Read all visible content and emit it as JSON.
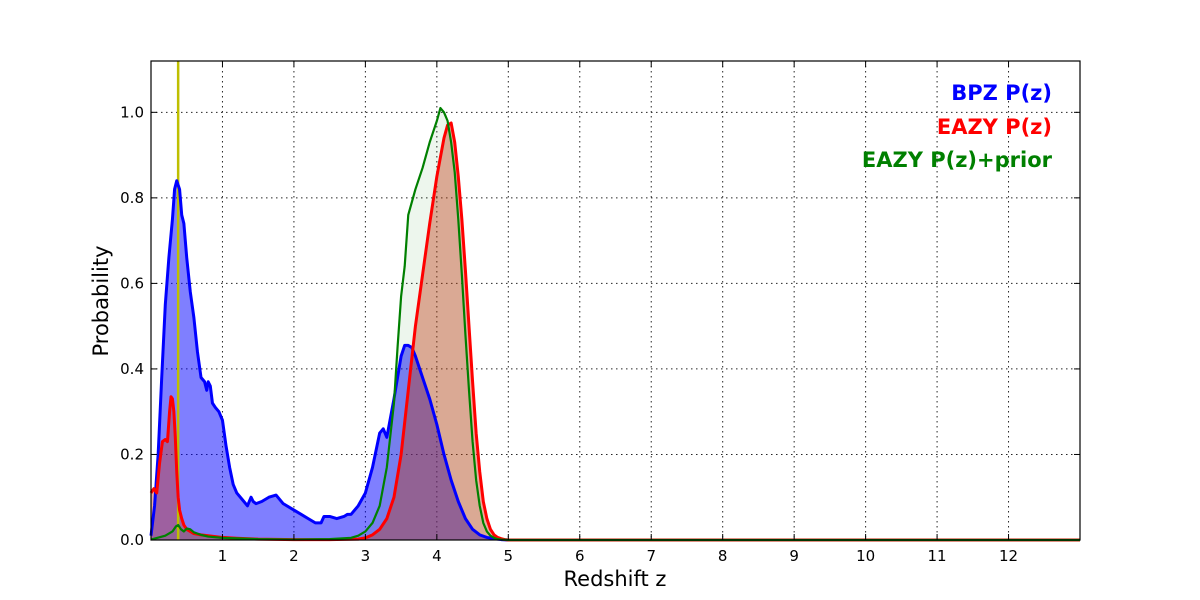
{
  "chart_data": {
    "type": "area",
    "title": "",
    "xlabel": "Redshift z",
    "ylabel": "Probability",
    "xlim": [
      0,
      13
    ],
    "ylim": [
      0,
      1.12
    ],
    "x_ticks": [
      1,
      2,
      3,
      4,
      5,
      6,
      7,
      8,
      9,
      10,
      11,
      12
    ],
    "y_ticks": [
      "0.0",
      "0.2",
      "0.4",
      "0.6",
      "0.8",
      "1.0"
    ],
    "grid": true,
    "legend_position": "top-right",
    "vline": {
      "x": 0.38,
      "color": "#bfbf00"
    },
    "series": [
      {
        "name": "BPZ P(z)",
        "color": "#0000ff",
        "fill": "#0000ff",
        "fill_opacity": 0.5,
        "x": [
          0,
          0.05,
          0.1,
          0.15,
          0.2,
          0.25,
          0.3,
          0.33,
          0.36,
          0.4,
          0.43,
          0.46,
          0.5,
          0.55,
          0.6,
          0.65,
          0.7,
          0.75,
          0.78,
          0.8,
          0.83,
          0.86,
          0.9,
          0.95,
          1.0,
          1.05,
          1.1,
          1.15,
          1.2,
          1.3,
          1.35,
          1.4,
          1.43,
          1.47,
          1.55,
          1.65,
          1.75,
          1.85,
          2.0,
          2.1,
          2.2,
          2.3,
          2.38,
          2.42,
          2.5,
          2.6,
          2.7,
          2.75,
          2.8,
          2.9,
          3.0,
          3.1,
          3.2,
          3.25,
          3.3,
          3.4,
          3.5,
          3.55,
          3.6,
          3.65,
          3.7,
          3.8,
          3.9,
          4.0,
          4.1,
          4.2,
          4.3,
          4.4,
          4.5,
          4.6,
          4.7,
          4.8,
          4.9,
          5.0,
          5.2,
          6,
          8,
          10,
          13
        ],
        "y": [
          0.01,
          0.08,
          0.2,
          0.38,
          0.55,
          0.66,
          0.75,
          0.82,
          0.84,
          0.82,
          0.76,
          0.74,
          0.66,
          0.58,
          0.52,
          0.44,
          0.38,
          0.37,
          0.35,
          0.37,
          0.36,
          0.32,
          0.31,
          0.3,
          0.28,
          0.22,
          0.17,
          0.13,
          0.11,
          0.09,
          0.08,
          0.1,
          0.09,
          0.085,
          0.09,
          0.1,
          0.105,
          0.085,
          0.07,
          0.06,
          0.05,
          0.04,
          0.04,
          0.055,
          0.055,
          0.05,
          0.055,
          0.06,
          0.06,
          0.08,
          0.11,
          0.17,
          0.25,
          0.26,
          0.24,
          0.33,
          0.43,
          0.455,
          0.455,
          0.45,
          0.43,
          0.38,
          0.33,
          0.27,
          0.2,
          0.14,
          0.09,
          0.05,
          0.025,
          0.012,
          0.006,
          0.003,
          0.001,
          0,
          0,
          0,
          0,
          0,
          0
        ]
      },
      {
        "name": "EAZY P(z)",
        "color": "#ff0000",
        "fill": "#cc3311",
        "fill_opacity": 0.4,
        "x": [
          0,
          0.04,
          0.08,
          0.12,
          0.16,
          0.2,
          0.23,
          0.26,
          0.28,
          0.3,
          0.32,
          0.34,
          0.36,
          0.38,
          0.4,
          0.43,
          0.46,
          0.5,
          0.55,
          0.6,
          0.7,
          0.8,
          1.0,
          1.2,
          1.5,
          2,
          2.5,
          2.9,
          3.0,
          3.1,
          3.2,
          3.3,
          3.4,
          3.5,
          3.6,
          3.7,
          3.8,
          3.9,
          4.0,
          4.1,
          4.15,
          4.2,
          4.25,
          4.3,
          4.35,
          4.4,
          4.45,
          4.5,
          4.55,
          4.6,
          4.65,
          4.7,
          4.75,
          4.8,
          4.85,
          4.9,
          4.95,
          5.0,
          5.2,
          6,
          8,
          10,
          13
        ],
        "y": [
          0.11,
          0.12,
          0.11,
          0.18,
          0.23,
          0.235,
          0.23,
          0.3,
          0.335,
          0.33,
          0.3,
          0.24,
          0.16,
          0.1,
          0.07,
          0.05,
          0.035,
          0.025,
          0.02,
          0.015,
          0.012,
          0.01,
          0.006,
          0.004,
          0.002,
          0.001,
          0.001,
          0.002,
          0.005,
          0.012,
          0.025,
          0.05,
          0.1,
          0.2,
          0.35,
          0.5,
          0.62,
          0.74,
          0.85,
          0.94,
          0.97,
          0.975,
          0.93,
          0.85,
          0.75,
          0.63,
          0.5,
          0.37,
          0.25,
          0.16,
          0.09,
          0.05,
          0.025,
          0.012,
          0.006,
          0.003,
          0.001,
          0,
          0,
          0,
          0,
          0,
          0
        ]
      },
      {
        "name": "EAZY P(z)+prior",
        "color": "#008000",
        "fill": "#008000",
        "fill_opacity": 0.07,
        "x": [
          0,
          0.2,
          0.3,
          0.35,
          0.38,
          0.42,
          0.46,
          0.5,
          0.55,
          0.6,
          0.7,
          0.8,
          1.0,
          1.5,
          2,
          2.5,
          2.8,
          2.9,
          3.0,
          3.1,
          3.2,
          3.3,
          3.4,
          3.45,
          3.5,
          3.55,
          3.6,
          3.7,
          3.8,
          3.9,
          4.0,
          4.05,
          4.1,
          4.15,
          4.2,
          4.25,
          4.3,
          4.35,
          4.4,
          4.45,
          4.5,
          4.55,
          4.6,
          4.65,
          4.7,
          4.75,
          4.8,
          4.85,
          4.9,
          5.0,
          5.2,
          6,
          8,
          10,
          13
        ],
        "y": [
          0.001,
          0.01,
          0.02,
          0.032,
          0.035,
          0.025,
          0.02,
          0.027,
          0.025,
          0.018,
          0.012,
          0.008,
          0.005,
          0.002,
          0.001,
          0.002,
          0.005,
          0.01,
          0.02,
          0.04,
          0.08,
          0.17,
          0.32,
          0.45,
          0.57,
          0.64,
          0.76,
          0.82,
          0.87,
          0.93,
          0.98,
          1.01,
          1.0,
          0.98,
          0.93,
          0.86,
          0.75,
          0.62,
          0.48,
          0.35,
          0.23,
          0.14,
          0.08,
          0.04,
          0.02,
          0.01,
          0.005,
          0.002,
          0.001,
          0,
          0,
          0,
          0,
          0,
          0
        ]
      }
    ]
  }
}
